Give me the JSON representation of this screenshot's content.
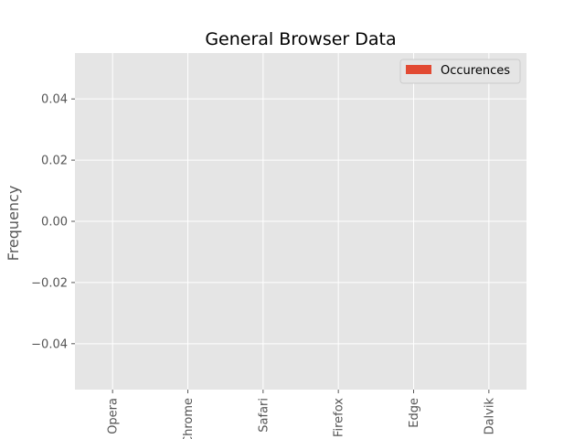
{
  "chart_data": {
    "type": "bar",
    "title": "General Browser Data",
    "xlabel": "",
    "ylabel": "Frequency",
    "categories": [
      "Opera",
      "Chrome",
      "Safari",
      "Firefox",
      "Edge",
      "Dalvik"
    ],
    "series": [
      {
        "name": "Occurences",
        "values": [
          0,
          0,
          0,
          0,
          0,
          0
        ],
        "color": "#E24A33"
      }
    ],
    "ylim": [
      -0.055,
      0.055
    ],
    "yticks": [
      -0.04,
      -0.02,
      0.0,
      0.02,
      0.04
    ],
    "ytick_labels": [
      "−0.04",
      "−0.02",
      "0.00",
      "0.02",
      "0.04"
    ],
    "grid": true,
    "legend_position": "upper right",
    "colors": {
      "plot_background": "#E5E5E5",
      "grid": "#FFFFFF",
      "tick_text": "#555555"
    }
  }
}
